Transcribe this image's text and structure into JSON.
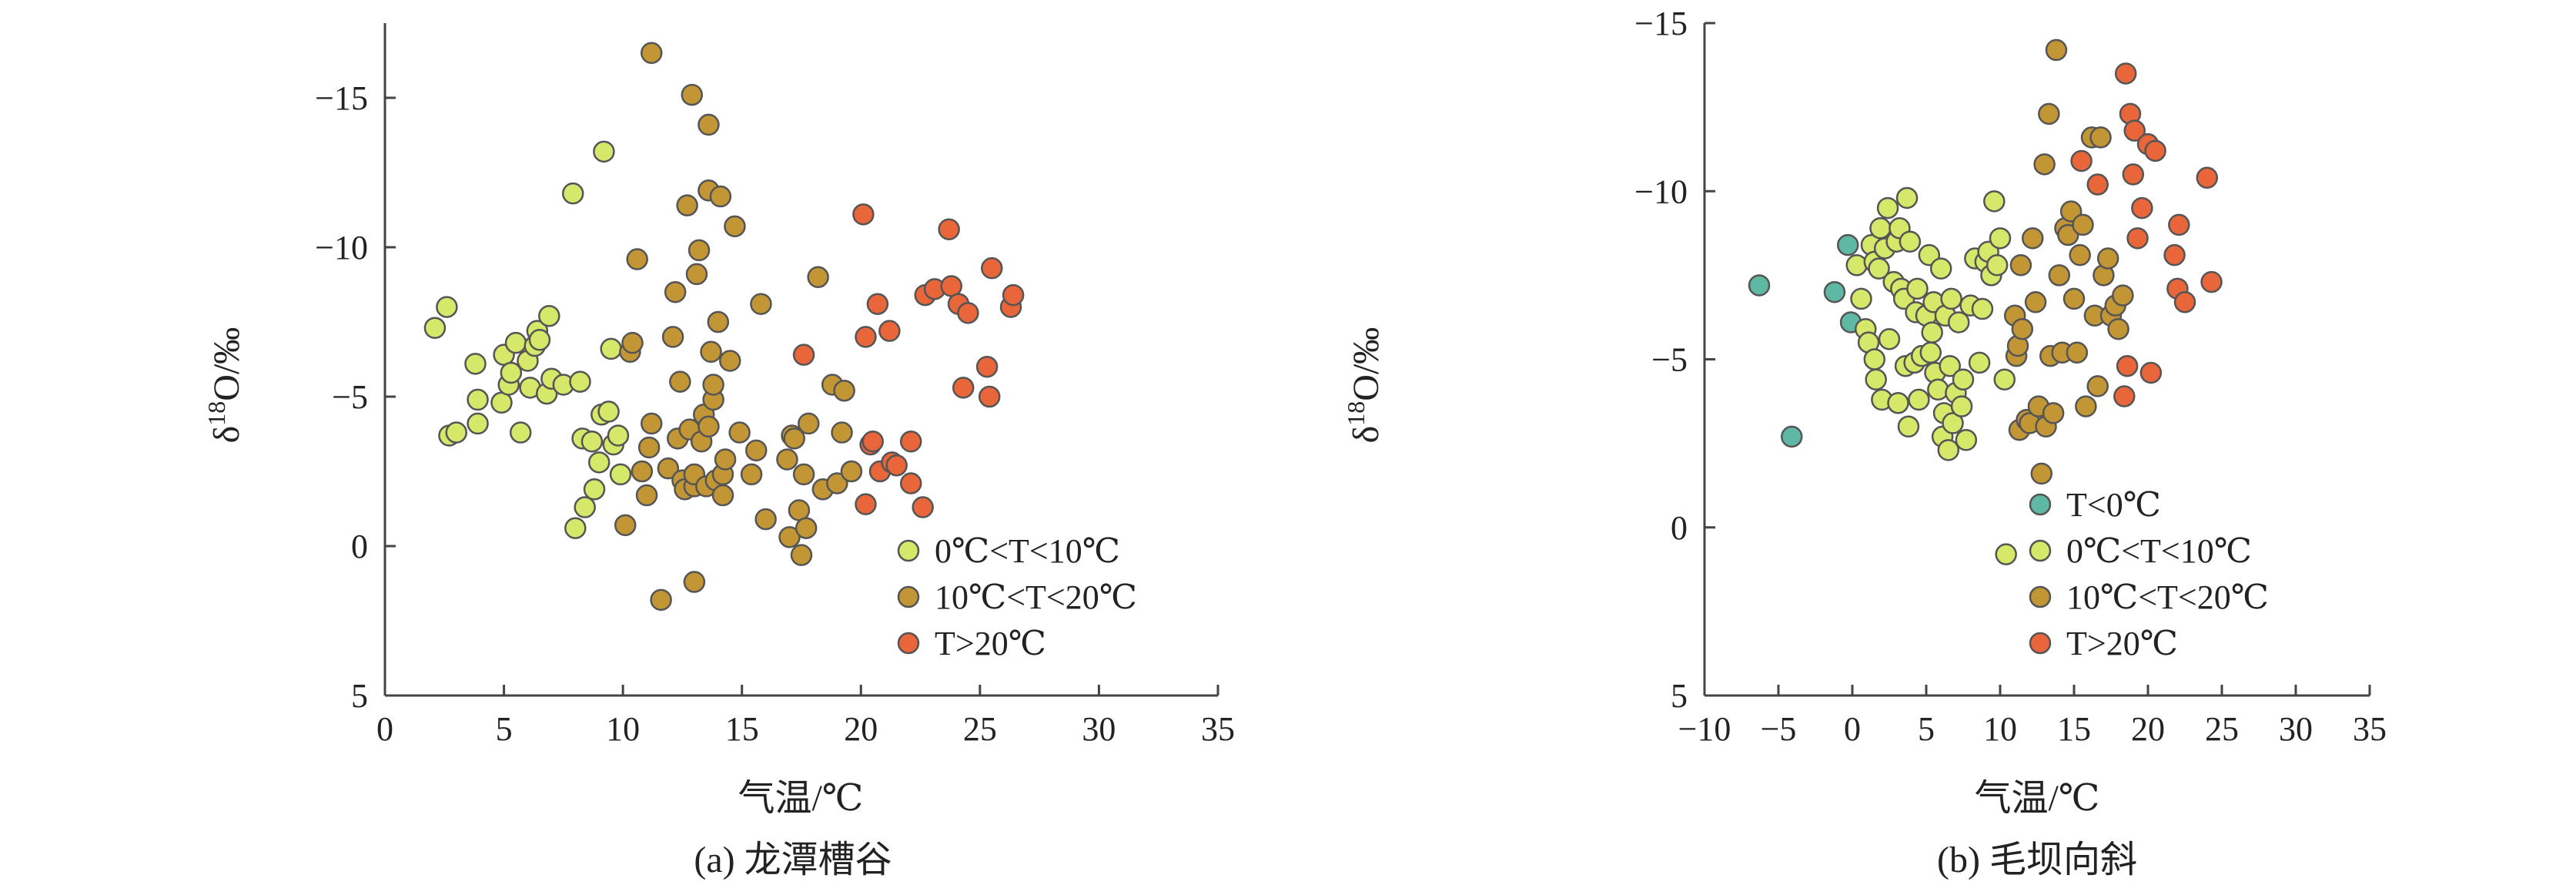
{
  "chart_data": [
    {
      "type": "scatter",
      "caption": "(a) 龙潭槽谷",
      "xlabel": "气温/℃",
      "ylabel_base": "δ",
      "ylabel_sup": "18",
      "ylabel_rest": "O/‰",
      "xlim": [
        0,
        35
      ],
      "ylim": [
        5,
        -17.5
      ],
      "xticks": [
        0,
        5,
        10,
        15,
        20,
        25,
        30,
        35
      ],
      "yticks": [
        5,
        0,
        -5,
        -10,
        -15
      ],
      "legend_position": "lower-right",
      "series": [
        {
          "name": "0℃<T<10℃",
          "color": "#d6e86a",
          "points": [
            [
              2.1,
              -7.3
            ],
            [
              2.6,
              -8.0
            ],
            [
              2.7,
              -3.7
            ],
            [
              3.0,
              -3.8
            ],
            [
              3.8,
              -6.1
            ],
            [
              3.9,
              -4.9
            ],
            [
              3.9,
              -4.1
            ],
            [
              4.9,
              -4.8
            ],
            [
              5.0,
              -6.4
            ],
            [
              5.2,
              -5.4
            ],
            [
              5.3,
              -5.8
            ],
            [
              5.5,
              -6.8
            ],
            [
              5.7,
              -3.8
            ],
            [
              6.0,
              -6.2
            ],
            [
              6.1,
              -5.3
            ],
            [
              6.3,
              -6.7
            ],
            [
              6.4,
              -7.2
            ],
            [
              6.5,
              -6.9
            ],
            [
              6.8,
              -5.1
            ],
            [
              6.9,
              -7.7
            ],
            [
              7.0,
              -5.6
            ],
            [
              7.5,
              -5.4
            ],
            [
              7.9,
              -11.8
            ],
            [
              8.0,
              -0.6
            ],
            [
              8.2,
              -5.5
            ],
            [
              8.3,
              -3.6
            ],
            [
              8.4,
              -1.3
            ],
            [
              8.7,
              -3.5
            ],
            [
              8.8,
              -1.9
            ],
            [
              9.0,
              -2.8
            ],
            [
              9.1,
              -4.4
            ],
            [
              9.2,
              -13.2
            ],
            [
              9.4,
              -4.5
            ],
            [
              9.5,
              -6.6
            ],
            [
              9.6,
              -3.4
            ],
            [
              9.8,
              -3.7
            ],
            [
              9.9,
              -2.4
            ]
          ]
        },
        {
          "name": "10℃<T<20℃",
          "color": "#c29635",
          "points": [
            [
              10.1,
              -0.7
            ],
            [
              10.3,
              -6.5
            ],
            [
              10.4,
              -6.8
            ],
            [
              10.6,
              -9.6
            ],
            [
              10.8,
              -2.5
            ],
            [
              11.0,
              -1.7
            ],
            [
              11.1,
              -3.3
            ],
            [
              11.2,
              -4.1
            ],
            [
              11.2,
              -16.5
            ],
            [
              11.6,
              1.8
            ],
            [
              11.9,
              -2.6
            ],
            [
              12.1,
              -7.0
            ],
            [
              12.2,
              -8.5
            ],
            [
              12.3,
              -3.6
            ],
            [
              12.4,
              -5.5
            ],
            [
              12.5,
              -2.2
            ],
            [
              12.6,
              -1.9
            ],
            [
              12.7,
              -11.4
            ],
            [
              12.8,
              -3.9
            ],
            [
              12.9,
              -15.1
            ],
            [
              13.0,
              -2.0
            ],
            [
              13.0,
              -2.4
            ],
            [
              13.0,
              1.2
            ],
            [
              13.1,
              -9.1
            ],
            [
              13.2,
              -9.9
            ],
            [
              13.3,
              -3.5
            ],
            [
              13.4,
              -4.4
            ],
            [
              13.5,
              -2.0
            ],
            [
              13.6,
              -11.9
            ],
            [
              13.6,
              -4.0
            ],
            [
              13.6,
              -14.1
            ],
            [
              13.7,
              -6.5
            ],
            [
              13.8,
              -4.9
            ],
            [
              13.8,
              -5.4
            ],
            [
              13.9,
              -2.2
            ],
            [
              14.0,
              -7.5
            ],
            [
              14.1,
              -11.7
            ],
            [
              14.2,
              -2.4
            ],
            [
              14.2,
              -1.7
            ],
            [
              14.3,
              -2.9
            ],
            [
              14.5,
              -6.2
            ],
            [
              14.7,
              -10.7
            ],
            [
              14.9,
              -3.8
            ],
            [
              15.4,
              -2.4
            ],
            [
              15.6,
              -3.2
            ],
            [
              15.8,
              -8.1
            ],
            [
              16.0,
              -0.9
            ],
            [
              16.9,
              -2.9
            ],
            [
              17.0,
              -0.3
            ],
            [
              17.1,
              -3.7
            ],
            [
              17.2,
              -3.6
            ],
            [
              17.4,
              -1.2
            ],
            [
              17.5,
              0.3
            ],
            [
              17.6,
              -2.4
            ],
            [
              17.7,
              -0.6
            ],
            [
              17.8,
              -4.1
            ],
            [
              18.2,
              -9.0
            ],
            [
              18.4,
              -1.9
            ],
            [
              18.8,
              -5.4
            ],
            [
              19.0,
              -2.1
            ],
            [
              19.2,
              -3.8
            ],
            [
              19.3,
              -5.2
            ],
            [
              19.6,
              -2.5
            ]
          ]
        },
        {
          "name": "T>20℃",
          "color": "#e8663a",
          "points": [
            [
              17.6,
              -6.4
            ],
            [
              20.1,
              -11.1
            ],
            [
              20.2,
              -7.0
            ],
            [
              20.2,
              -1.4
            ],
            [
              20.4,
              -3.4
            ],
            [
              20.5,
              -3.5
            ],
            [
              20.7,
              -8.1
            ],
            [
              20.8,
              -2.5
            ],
            [
              21.2,
              -7.2
            ],
            [
              21.3,
              -2.8
            ],
            [
              21.5,
              -2.7
            ],
            [
              22.1,
              -3.5
            ],
            [
              22.1,
              -2.1
            ],
            [
              22.6,
              -1.3
            ],
            [
              22.7,
              -8.4
            ],
            [
              23.1,
              -8.6
            ],
            [
              23.7,
              -10.6
            ],
            [
              23.8,
              -8.7
            ],
            [
              24.1,
              -8.1
            ],
            [
              24.3,
              -5.3
            ],
            [
              24.5,
              -7.8
            ],
            [
              25.3,
              -6.0
            ],
            [
              25.4,
              -5.0
            ],
            [
              25.5,
              -9.3
            ],
            [
              26.3,
              -8.0
            ],
            [
              26.4,
              -8.4
            ]
          ]
        }
      ]
    },
    {
      "type": "scatter",
      "caption": "(b) 毛坝向斜",
      "xlabel": "气温/℃",
      "ylabel_base": "δ",
      "ylabel_sup": "18",
      "ylabel_rest": "O/‰",
      "xlim": [
        -10,
        35
      ],
      "ylim": [
        5,
        -15
      ],
      "xticks": [
        -10,
        -5,
        0,
        5,
        10,
        15,
        20,
        25,
        30,
        35
      ],
      "yticks": [
        5,
        0,
        -5,
        -10,
        -15
      ],
      "legend_position": "lower-right",
      "series": [
        {
          "name": "T<0℃",
          "color": "#5fb8a4",
          "points": [
            [
              -6.3,
              -7.2
            ],
            [
              -4.1,
              -2.7
            ],
            [
              -1.2,
              -7.0
            ],
            [
              -0.3,
              -8.4
            ],
            [
              -0.1,
              -6.1
            ]
          ]
        },
        {
          "name": "0℃<T<10℃",
          "color": "#d6e86a",
          "points": [
            [
              0.3,
              -7.8
            ],
            [
              0.6,
              -6.8
            ],
            [
              0.9,
              -5.9
            ],
            [
              1.1,
              -5.5
            ],
            [
              1.3,
              -8.4
            ],
            [
              1.5,
              -7.9
            ],
            [
              1.5,
              -5.0
            ],
            [
              1.6,
              -4.4
            ],
            [
              1.8,
              -7.7
            ],
            [
              1.9,
              -8.9
            ],
            [
              2.0,
              -3.8
            ],
            [
              2.2,
              -8.3
            ],
            [
              2.4,
              -9.5
            ],
            [
              2.5,
              -5.6
            ],
            [
              2.8,
              -7.3
            ],
            [
              3.0,
              -8.5
            ],
            [
              3.1,
              -3.7
            ],
            [
              3.2,
              -8.9
            ],
            [
              3.3,
              -7.1
            ],
            [
              3.5,
              -6.8
            ],
            [
              3.6,
              -4.8
            ],
            [
              3.7,
              -9.8
            ],
            [
              3.8,
              -3.0
            ],
            [
              3.9,
              -8.5
            ],
            [
              4.2,
              -4.9
            ],
            [
              4.3,
              -6.4
            ],
            [
              4.4,
              -7.1
            ],
            [
              4.5,
              -3.8
            ],
            [
              4.7,
              -5.1
            ],
            [
              5.0,
              -6.3
            ],
            [
              5.2,
              -8.1
            ],
            [
              5.3,
              -5.2
            ],
            [
              5.4,
              -5.8
            ],
            [
              5.5,
              -6.7
            ],
            [
              5.6,
              -4.6
            ],
            [
              5.8,
              -4.1
            ],
            [
              6.0,
              -7.7
            ],
            [
              6.1,
              -2.7
            ],
            [
              6.2,
              -3.4
            ],
            [
              6.3,
              -6.3
            ],
            [
              6.5,
              -2.3
            ],
            [
              6.6,
              -4.8
            ],
            [
              6.7,
              -6.8
            ],
            [
              6.8,
              -3.1
            ],
            [
              7.0,
              -4.0
            ],
            [
              7.2,
              -6.1
            ],
            [
              7.4,
              -3.6
            ],
            [
              7.5,
              -4.4
            ],
            [
              7.7,
              -2.6
            ],
            [
              8.0,
              -6.6
            ],
            [
              8.3,
              -8.0
            ],
            [
              8.6,
              -4.9
            ],
            [
              8.8,
              -6.5
            ],
            [
              9.0,
              -7.9
            ],
            [
              9.2,
              -8.2
            ],
            [
              9.4,
              -7.5
            ],
            [
              9.6,
              -9.7
            ],
            [
              9.8,
              -7.8
            ],
            [
              10.0,
              -8.6
            ],
            [
              10.4,
              0.8
            ],
            [
              10.3,
              -4.4
            ]
          ]
        },
        {
          "name": "10℃<T<20℃",
          "color": "#c29635",
          "points": [
            [
              11.0,
              -6.3
            ],
            [
              11.1,
              -5.1
            ],
            [
              11.2,
              -5.4
            ],
            [
              11.3,
              -2.9
            ],
            [
              11.4,
              -7.8
            ],
            [
              11.5,
              -5.9
            ],
            [
              11.8,
              -3.2
            ],
            [
              12.0,
              -3.1
            ],
            [
              12.2,
              -8.6
            ],
            [
              12.4,
              -6.7
            ],
            [
              12.6,
              -3.6
            ],
            [
              12.8,
              -1.6
            ],
            [
              13.0,
              -10.8
            ],
            [
              13.1,
              -3.0
            ],
            [
              13.3,
              -12.3
            ],
            [
              13.4,
              -5.1
            ],
            [
              13.6,
              -3.4
            ],
            [
              13.8,
              -14.2
            ],
            [
              14.0,
              -7.5
            ],
            [
              14.2,
              -5.2
            ],
            [
              14.4,
              -8.9
            ],
            [
              14.6,
              -8.7
            ],
            [
              14.8,
              -9.4
            ],
            [
              15.0,
              -6.8
            ],
            [
              15.2,
              -5.2
            ],
            [
              15.4,
              -8.1
            ],
            [
              15.6,
              -9.0
            ],
            [
              15.8,
              -3.6
            ],
            [
              16.2,
              -11.6
            ],
            [
              16.4,
              -6.3
            ],
            [
              16.6,
              -4.2
            ],
            [
              16.8,
              -11.6
            ],
            [
              17.0,
              -7.5
            ],
            [
              17.3,
              -8.0
            ],
            [
              17.5,
              -6.3
            ],
            [
              17.8,
              -6.6
            ],
            [
              18.0,
              -5.9
            ],
            [
              18.3,
              -6.9
            ]
          ]
        },
        {
          "name": "T>20℃",
          "color": "#e8663a",
          "points": [
            [
              15.5,
              -10.9
            ],
            [
              16.6,
              -10.2
            ],
            [
              18.4,
              -3.9
            ],
            [
              18.5,
              -13.5
            ],
            [
              18.6,
              -4.8
            ],
            [
              18.8,
              -12.3
            ],
            [
              19.0,
              -10.5
            ],
            [
              19.1,
              -11.8
            ],
            [
              19.3,
              -8.6
            ],
            [
              19.6,
              -9.5
            ],
            [
              20.0,
              -11.4
            ],
            [
              20.2,
              -4.6
            ],
            [
              20.5,
              -11.2
            ],
            [
              21.8,
              -8.1
            ],
            [
              22.0,
              -7.1
            ],
            [
              22.1,
              -9.0
            ],
            [
              22.5,
              -6.7
            ],
            [
              24.0,
              -10.4
            ],
            [
              24.3,
              -7.3
            ]
          ]
        }
      ]
    }
  ]
}
